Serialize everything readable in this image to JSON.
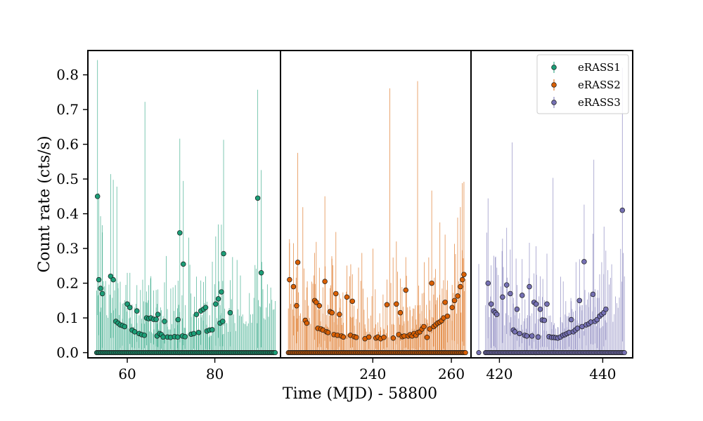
{
  "chart_data": {
    "type": "scatter",
    "title": "",
    "xlabel": "Time (MJD) - 58800",
    "ylabel": "Count rate (cts/s)",
    "ylim": [
      -0.015,
      0.87
    ],
    "yticks": [
      0.0,
      0.1,
      0.2,
      0.3,
      0.4,
      0.5,
      0.6,
      0.7,
      0.8
    ],
    "legend": {
      "placement": "top-right",
      "entries": [
        "eRASS1",
        "eRASS2",
        "eRASS3"
      ]
    },
    "colors": {
      "eRASS1": "#1b9e77",
      "eRASS2": "#d95f02",
      "eRASS3": "#7570b3"
    },
    "panels": [
      {
        "series": "eRASS1",
        "xlim": [
          51.0,
          95.0
        ],
        "xticks": [
          60,
          80
        ],
        "x_range": [
          53.0,
          93.8
        ],
        "n_points": 160,
        "detections": [
          [
            53.2,
            0.45
          ],
          [
            53.5,
            0.21
          ],
          [
            53.9,
            0.185
          ],
          [
            54.3,
            0.17
          ],
          [
            56.2,
            0.22
          ],
          [
            56.8,
            0.21
          ],
          [
            57.4,
            0.09
          ],
          [
            57.9,
            0.085
          ],
          [
            58.4,
            0.08
          ],
          [
            58.9,
            0.078
          ],
          [
            59.4,
            0.075
          ],
          [
            60.0,
            0.14
          ],
          [
            60.6,
            0.13
          ],
          [
            61.1,
            0.065
          ],
          [
            61.7,
            0.06
          ],
          [
            62.2,
            0.12
          ],
          [
            62.7,
            0.055
          ],
          [
            63.3,
            0.052
          ],
          [
            63.9,
            0.05
          ],
          [
            64.4,
            0.1
          ],
          [
            64.9,
            0.098
          ],
          [
            65.4,
            0.1
          ],
          [
            66.0,
            0.096
          ],
          [
            66.6,
            0.096
          ],
          [
            66.8,
            0.048
          ],
          [
            67.0,
            0.11
          ],
          [
            67.4,
            0.055
          ],
          [
            67.8,
            0.052
          ],
          [
            68.2,
            0.045
          ],
          [
            68.5,
            0.09
          ],
          [
            69.2,
            0.045
          ],
          [
            69.9,
            0.044
          ],
          [
            70.8,
            0.046
          ],
          [
            71.5,
            0.045
          ],
          [
            71.6,
            0.095
          ],
          [
            72.0,
            0.345
          ],
          [
            72.6,
            0.048
          ],
          [
            72.8,
            0.255
          ],
          [
            73.2,
            0.046
          ],
          [
            74.6,
            0.053
          ],
          [
            75.2,
            0.055
          ],
          [
            75.8,
            0.11
          ],
          [
            76.3,
            0.058
          ],
          [
            76.8,
            0.12
          ],
          [
            77.4,
            0.125
          ],
          [
            77.9,
            0.13
          ],
          [
            78.2,
            0.062
          ],
          [
            78.8,
            0.065
          ],
          [
            79.4,
            0.066
          ],
          [
            80.2,
            0.14
          ],
          [
            80.8,
            0.155
          ],
          [
            81.2,
            0.085
          ],
          [
            81.5,
            0.175
          ],
          [
            81.8,
            0.09
          ],
          [
            82.0,
            0.285
          ],
          [
            83.5,
            0.115
          ],
          [
            89.8,
            0.445
          ],
          [
            90.6,
            0.23
          ]
        ]
      },
      {
        "series": "eRASS2",
        "xlim": [
          216.5,
          265.0
        ],
        "xticks": [
          240,
          260
        ],
        "x_range": [
          218.5,
          263.6
        ],
        "n_points": 160,
        "detections": [
          [
            218.8,
            0.21
          ],
          [
            219.8,
            0.19
          ],
          [
            220.6,
            0.135
          ],
          [
            220.9,
            0.26
          ],
          [
            222.8,
            0.093
          ],
          [
            223.2,
            0.085
          ],
          [
            225.2,
            0.15
          ],
          [
            225.6,
            0.145
          ],
          [
            226.0,
            0.07
          ],
          [
            226.4,
            0.135
          ],
          [
            226.8,
            0.068
          ],
          [
            227.3,
            0.065
          ],
          [
            227.8,
            0.205
          ],
          [
            228.2,
            0.06
          ],
          [
            228.6,
            0.058
          ],
          [
            229.1,
            0.118
          ],
          [
            229.6,
            0.115
          ],
          [
            230.1,
            0.052
          ],
          [
            230.6,
            0.17
          ],
          [
            231.0,
            0.05
          ],
          [
            231.5,
            0.11
          ],
          [
            232.0,
            0.048
          ],
          [
            232.5,
            0.045
          ],
          [
            233.4,
            0.16
          ],
          [
            234.3,
            0.05
          ],
          [
            234.8,
            0.148
          ],
          [
            235.3,
            0.046
          ],
          [
            235.8,
            0.044
          ],
          [
            238.0,
            0.04
          ],
          [
            239.0,
            0.045
          ],
          [
            240.8,
            0.042
          ],
          [
            241.3,
            0.045
          ],
          [
            242.0,
            0.04
          ],
          [
            242.8,
            0.044
          ],
          [
            243.6,
            0.138
          ],
          [
            245.2,
            0.042
          ],
          [
            246.0,
            0.14
          ],
          [
            246.6,
            0.052
          ],
          [
            247.0,
            0.115
          ],
          [
            247.5,
            0.046
          ],
          [
            248.0,
            0.048
          ],
          [
            248.4,
            0.18
          ],
          [
            249.0,
            0.048
          ],
          [
            249.5,
            0.052
          ],
          [
            250.0,
            0.048
          ],
          [
            250.5,
            0.055
          ],
          [
            251.0,
            0.05
          ],
          [
            251.5,
            0.058
          ],
          [
            252.0,
            0.06
          ],
          [
            252.5,
            0.068
          ],
          [
            253.0,
            0.075
          ],
          [
            253.8,
            0.044
          ],
          [
            254.5,
            0.068
          ],
          [
            255.0,
            0.2
          ],
          [
            255.5,
            0.075
          ],
          [
            256.0,
            0.08
          ],
          [
            256.5,
            0.085
          ],
          [
            257.0,
            0.088
          ],
          [
            257.5,
            0.092
          ],
          [
            258.0,
            0.1
          ],
          [
            258.4,
            0.145
          ],
          [
            259.0,
            0.105
          ],
          [
            260.2,
            0.13
          ],
          [
            260.8,
            0.15
          ],
          [
            261.6,
            0.163
          ],
          [
            262.3,
            0.19
          ],
          [
            262.8,
            0.21
          ],
          [
            263.2,
            0.225
          ]
        ]
      },
      {
        "series": "eRASS3",
        "xlim": [
          414.5,
          445.8
        ],
        "xticks": [
          420,
          440
        ],
        "x_range": [
          417.3,
          444.2
        ],
        "n_points": 110,
        "extra_zero_x": [
          416.0
        ],
        "detections": [
          [
            417.8,
            0.2
          ],
          [
            418.4,
            0.14
          ],
          [
            418.9,
            0.12
          ],
          [
            419.2,
            0.115
          ],
          [
            419.5,
            0.11
          ],
          [
            420.6,
            0.16
          ],
          [
            421.4,
            0.195
          ],
          [
            422.1,
            0.17
          ],
          [
            422.7,
            0.065
          ],
          [
            423.0,
            0.06
          ],
          [
            423.4,
            0.125
          ],
          [
            423.9,
            0.055
          ],
          [
            424.4,
            0.165
          ],
          [
            424.9,
            0.05
          ],
          [
            425.3,
            0.048
          ],
          [
            425.8,
            0.19
          ],
          [
            426.3,
            0.048
          ],
          [
            426.7,
            0.145
          ],
          [
            427.1,
            0.14
          ],
          [
            427.5,
            0.045
          ],
          [
            427.9,
            0.125
          ],
          [
            428.3,
            0.094
          ],
          [
            428.7,
            0.093
          ],
          [
            429.2,
            0.14
          ],
          [
            429.6,
            0.046
          ],
          [
            430.1,
            0.044
          ],
          [
            430.5,
            0.044
          ],
          [
            430.9,
            0.043
          ],
          [
            431.3,
            0.042
          ],
          [
            431.8,
            0.045
          ],
          [
            432.3,
            0.05
          ],
          [
            432.7,
            0.052
          ],
          [
            433.1,
            0.055
          ],
          [
            433.5,
            0.058
          ],
          [
            433.9,
            0.095
          ],
          [
            434.3,
            0.06
          ],
          [
            434.7,
            0.065
          ],
          [
            435.1,
            0.07
          ],
          [
            435.5,
            0.15
          ],
          [
            436.0,
            0.075
          ],
          [
            436.4,
            0.262
          ],
          [
            436.8,
            0.08
          ],
          [
            437.3,
            0.083
          ],
          [
            437.7,
            0.088
          ],
          [
            438.1,
            0.168
          ],
          [
            438.5,
            0.09
          ],
          [
            438.9,
            0.095
          ],
          [
            439.4,
            0.105
          ],
          [
            439.8,
            0.11
          ],
          [
            440.2,
            0.115
          ],
          [
            440.6,
            0.125
          ],
          [
            443.8,
            0.41
          ]
        ]
      }
    ]
  }
}
